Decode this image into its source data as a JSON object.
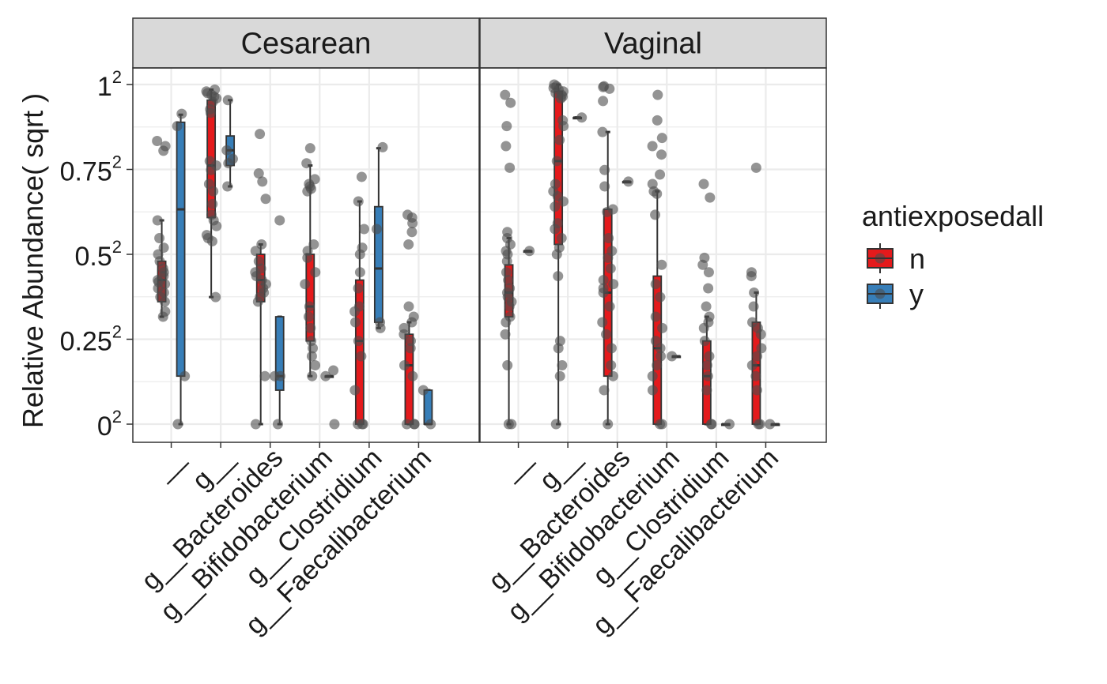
{
  "chart_data": {
    "type": "box",
    "y_axis": {
      "label": "Relative Abundance( sqrt )",
      "scale": "sqrt",
      "ticks": [
        {
          "base": "0",
          "exp": "2",
          "value": 0
        },
        {
          "base": "0.25",
          "exp": "2",
          "value": 0.0625
        },
        {
          "base": "0.5",
          "exp": "2",
          "value": 0.25
        },
        {
          "base": "0.75",
          "exp": "2",
          "value": 0.5625
        },
        {
          "base": "1",
          "exp": "2",
          "value": 1
        }
      ]
    },
    "x_categories": [
      "__",
      "g__",
      "g__Bacteroides",
      "g__Bifidobacterium",
      "g__Clostridium",
      "g__Faecalibacterium"
    ],
    "legend": {
      "title": "antiexposedall",
      "placement": "right",
      "items": [
        {
          "label": "n",
          "color": "#e41a1c"
        },
        {
          "label": "y",
          "color": "#377eb8"
        }
      ]
    },
    "colors": {
      "n": "#e41a1c",
      "y": "#377eb8",
      "points": "#4d4d4d",
      "strip": "#d9d9d9",
      "grid": "#ebebeb"
    },
    "panels": [
      {
        "title": "Cesarean",
        "groups": [
          {
            "category": "__",
            "fill": "n",
            "box": {
              "min": 0.1,
              "q1": 0.13,
              "median": 0.18,
              "q3": 0.23,
              "max": 0.36
            },
            "points": [
              0.695,
              0.67,
              0.648,
              0.36,
              0.3,
              0.27,
              0.25,
              0.23,
              0.21,
              0.2,
              0.19,
              0.18,
              0.175,
              0.17,
              0.16,
              0.15,
              0.14,
              0.13,
              0.11,
              0.1
            ]
          },
          {
            "category": "__",
            "fill": "y",
            "box": {
              "min": 0.0,
              "q1": 0.02,
              "median": 0.4,
              "q3": 0.79,
              "max": 0.83
            },
            "points": [
              0.835,
              0.77,
              0.02,
              0.0
            ]
          },
          {
            "category": "g__",
            "fill": "n",
            "box": {
              "min": 0.14,
              "q1": 0.37,
              "median": 0.58,
              "q3": 0.91,
              "max": 0.97
            },
            "points": [
              0.97,
              0.96,
              0.95,
              0.94,
              0.93,
              0.92,
              0.9,
              0.86,
              0.84,
              0.6,
              0.58,
              0.56,
              0.5,
              0.47,
              0.42,
              0.38,
              0.36,
              0.34,
              0.31,
              0.3,
              0.29,
              0.14
            ]
          },
          {
            "category": "g__",
            "fill": "y",
            "box": {
              "min": 0.49,
              "q1": 0.58,
              "median": 0.65,
              "q3": 0.72,
              "max": 0.91
            },
            "points": [
              0.91,
              0.65,
              0.61,
              0.59,
              0.49
            ]
          },
          {
            "category": "g__Bacteroides",
            "fill": "n",
            "box": {
              "min": 0.0,
              "q1": 0.13,
              "median": 0.18,
              "q3": 0.25,
              "max": 0.28
            },
            "points": [
              0.73,
              0.545,
              0.51,
              0.44,
              0.28,
              0.26,
              0.23,
              0.21,
              0.2,
              0.19,
              0.18,
              0.17,
              0.16,
              0.15,
              0.14,
              0.13,
              0.02,
              0.0
            ]
          },
          {
            "category": "g__Bacteroides",
            "fill": "y",
            "box": {
              "min": 0.0,
              "q1": 0.01,
              "median": 0.02,
              "q3": 0.1,
              "max": 0.1
            },
            "points": [
              0.36,
              0.02,
              0.02,
              0.0
            ]
          },
          {
            "category": "g__Bifidobacterium",
            "fill": "n",
            "box": {
              "min": 0.02,
              "q1": 0.06,
              "median": 0.12,
              "q3": 0.25,
              "max": 0.58
            },
            "points": [
              0.66,
              0.59,
              0.52,
              0.5,
              0.49,
              0.48,
              0.47,
              0.28,
              0.26,
              0.24,
              0.2,
              0.17,
              0.12,
              0.1,
              0.08,
              0.06,
              0.05,
              0.04,
              0.03,
              0.02
            ]
          },
          {
            "category": "g__Bifidobacterium",
            "fill": "y",
            "box": {
              "min": 0.02,
              "q1": 0.02,
              "median": 0.02,
              "q3": 0.02,
              "max": 0.02
            },
            "points": [
              0.025,
              0.02,
              0.0
            ]
          },
          {
            "category": "g__Clostridium",
            "fill": "n",
            "box": {
              "min": 0.0,
              "q1": 0.0,
              "median": 0.06,
              "q3": 0.18,
              "max": 0.43
            },
            "points": [
              0.53,
              0.43,
              0.33,
              0.27,
              0.25,
              0.2,
              0.16,
              0.12,
              0.11,
              0.09,
              0.06,
              0.04,
              0.01,
              0.0,
              0.0,
              0.0
            ]
          },
          {
            "category": "g__Clostridium",
            "fill": "y",
            "box": {
              "min": 0.08,
              "q1": 0.09,
              "median": 0.21,
              "q3": 0.41,
              "max": 0.66
            },
            "points": [
              0.665,
              0.33,
              0.09,
              0.08
            ]
          },
          {
            "category": "g__Faecalibacterium",
            "fill": "n",
            "box": {
              "min": 0.0,
              "q1": 0.0,
              "median": 0.03,
              "q3": 0.07,
              "max": 0.09
            },
            "points": [
              0.38,
              0.37,
              0.35,
              0.32,
              0.28,
              0.12,
              0.1,
              0.09,
              0.08,
              0.07,
              0.06,
              0.05,
              0.03,
              0.02,
              0.0,
              0.0,
              0.0
            ]
          },
          {
            "category": "g__Faecalibacterium",
            "fill": "y",
            "box": {
              "min": 0.0,
              "q1": 0.0,
              "median": 0.0,
              "q3": 0.01,
              "max": 0.01
            },
            "points": [
              0.01,
              0.0
            ]
          }
        ]
      },
      {
        "title": "Vaginal",
        "groups": [
          {
            "category": "__",
            "fill": "n",
            "box": {
              "min": 0.0,
              "q1": 0.1,
              "median": 0.15,
              "q3": 0.22,
              "max": 0.3
            },
            "points": [
              0.94,
              0.895,
              0.77,
              0.67,
              0.57,
              0.32,
              0.3,
              0.28,
              0.26,
              0.25,
              0.23,
              0.2,
              0.18,
              0.16,
              0.15,
              0.14,
              0.13,
              0.12,
              0.1,
              0.09,
              0.07,
              0.03,
              0.0,
              0.0
            ]
          },
          {
            "category": "__",
            "fill": "y",
            "box": {
              "min": 0.26,
              "q1": 0.26,
              "median": 0.26,
              "q3": 0.26,
              "max": 0.26
            },
            "points": [
              0.26
            ]
          },
          {
            "category": "g__",
            "fill": "n",
            "box": {
              "min": 0.0,
              "q1": 0.28,
              "median": 0.6,
              "q3": 0.96,
              "max": 1.0
            },
            "points": [
              1.0,
              0.99,
              0.98,
              0.97,
              0.96,
              0.95,
              0.94,
              0.93,
              0.92,
              0.8,
              0.77,
              0.7,
              0.6,
              0.5,
              0.47,
              0.45,
              0.43,
              0.41,
              0.35,
              0.33,
              0.3,
              0.27,
              0.25,
              0.19,
              0.06,
              0.05,
              0.03,
              0.02,
              0.0
            ]
          },
          {
            "category": "g__",
            "fill": "y",
            "box": {
              "min": 0.815,
              "q1": 0.815,
              "median": 0.815,
              "q3": 0.815,
              "max": 0.815
            },
            "points": [
              0.815
            ]
          },
          {
            "category": "g__Bacteroides",
            "fill": "n",
            "box": {
              "min": 0.0,
              "q1": 0.02,
              "median": 0.15,
              "q3": 0.4,
              "max": 0.74
            },
            "points": [
              0.99,
              0.985,
              0.975,
              0.905,
              0.74,
              0.56,
              0.49,
              0.4,
              0.39,
              0.3,
              0.26,
              0.24,
              0.21,
              0.18,
              0.17,
              0.16,
              0.15,
              0.12,
              0.09,
              0.07,
              0.05,
              0.03,
              0.02,
              0.01,
              0.0
            ]
          },
          {
            "category": "g__Bacteroides",
            "fill": "y",
            "box": {
              "min": 0.51,
              "q1": 0.51,
              "median": 0.51,
              "q3": 0.51,
              "max": 0.51
            },
            "points": [
              0.51
            ]
          },
          {
            "category": "g__Bifidobacterium",
            "fill": "n",
            "box": {
              "min": 0.0,
              "q1": 0.0,
              "median": 0.05,
              "q3": 0.19,
              "max": 0.47
            },
            "points": [
              0.94,
              0.8,
              0.71,
              0.67,
              0.63,
              0.54,
              0.5,
              0.47,
              0.46,
              0.38,
              0.22,
              0.17,
              0.14,
              0.1,
              0.08,
              0.06,
              0.05,
              0.04,
              0.03,
              0.02,
              0.01,
              0.0,
              0.0
            ]
          },
          {
            "category": "g__Bifidobacterium",
            "fill": "y",
            "box": {
              "min": 0.04,
              "q1": 0.04,
              "median": 0.04,
              "q3": 0.04,
              "max": 0.04
            },
            "points": [
              0.04
            ]
          },
          {
            "category": "g__Clostridium",
            "fill": "n",
            "box": {
              "min": 0.0,
              "q1": 0.0,
              "median": 0.02,
              "q3": 0.06,
              "max": 0.1
            },
            "points": [
              0.5,
              0.445,
              0.24,
              0.22,
              0.2,
              0.16,
              0.12,
              0.1,
              0.09,
              0.08,
              0.06,
              0.04,
              0.03,
              0.02,
              0.01,
              0.0,
              0.0
            ]
          },
          {
            "category": "g__Clostridium",
            "fill": "y",
            "box": {
              "min": 0.0,
              "q1": 0.0,
              "median": 0.0,
              "q3": 0.0,
              "max": 0.0
            },
            "points": [
              0.0
            ]
          },
          {
            "category": "g__Faecalibacterium",
            "fill": "n",
            "box": {
              "min": 0.0,
              "q1": 0.0,
              "median": 0.03,
              "q3": 0.09,
              "max": 0.15
            },
            "points": [
              0.57,
              0.2,
              0.19,
              0.15,
              0.12,
              0.09,
              0.08,
              0.07,
              0.05,
              0.04,
              0.03,
              0.02,
              0.01,
              0.0,
              0.0
            ]
          },
          {
            "category": "g__Faecalibacterium",
            "fill": "y",
            "box": {
              "min": 0.0,
              "q1": 0.0,
              "median": 0.0,
              "q3": 0.0,
              "max": 0.0
            },
            "points": [
              0.0
            ]
          }
        ]
      }
    ]
  }
}
